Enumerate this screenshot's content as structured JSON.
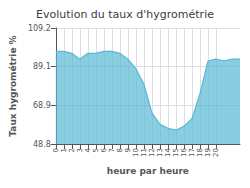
{
  "chart_data": {
    "type": "area",
    "title": "Evolution du taux d'hygrométrie",
    "xlabel": "heure par heure",
    "ylabel": "Taux hygrométrie %",
    "x": [
      0,
      1,
      2,
      3,
      4,
      5,
      6,
      7,
      8,
      9,
      10,
      11,
      12,
      13,
      14,
      15,
      16,
      17,
      18,
      19,
      20,
      21,
      22,
      23
    ],
    "values": [
      97,
      97,
      96,
      93,
      96,
      96,
      97,
      97,
      96,
      93,
      88,
      80,
      65,
      59,
      57,
      56,
      58,
      62,
      75,
      92,
      93,
      92,
      93,
      93
    ],
    "color": "#57b8d4",
    "xlim": [
      0,
      23
    ],
    "xticks": [
      0,
      1,
      2,
      3,
      4,
      5,
      6,
      7,
      8,
      9,
      10,
      11,
      12,
      13,
      14,
      15,
      16,
      17,
      18,
      19,
      20
    ],
    "ylim": [
      48.8,
      109.2
    ],
    "yticks": [
      48.8,
      68.9,
      89.1,
      109.2
    ],
    "grid": true
  }
}
